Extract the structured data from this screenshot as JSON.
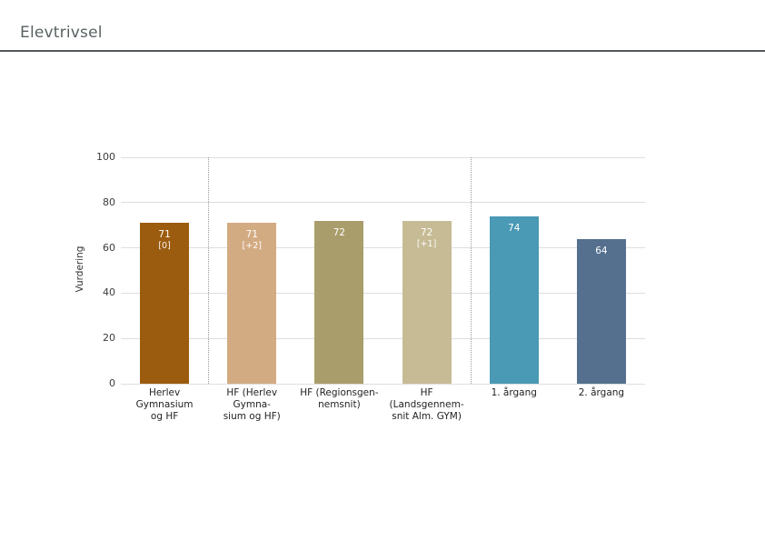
{
  "page": {
    "title": "Elevtrivsel"
  },
  "chart_data": {
    "type": "bar",
    "title": "Elevtrivsel",
    "xlabel": "",
    "ylabel": "Vurdering",
    "ylim": [
      0,
      100
    ],
    "yticks": [
      0,
      20,
      40,
      60,
      80,
      100
    ],
    "grid": true,
    "legend": "none",
    "categories": [
      "Herlev Gymnasium og HF",
      "HF (Herlev Gymnasium og HF)",
      "HF (Regionsgennemsnit)",
      "HF (Landsgennemsnit Alm. GYM)",
      "1. årgang",
      "2. årgang"
    ],
    "category_label_lines": [
      [
        "Herlev Gymnasium",
        "og HF"
      ],
      [
        "HF (Herlev Gymna-",
        "sium og HF)"
      ],
      [
        "HF (Regionsgen-",
        "nemsnit)"
      ],
      [
        "HF (Landsgennem-",
        "snit Alm. GYM)"
      ],
      [
        "1. årgang"
      ],
      [
        "2. årgang"
      ]
    ],
    "values": [
      71,
      71,
      72,
      72,
      74,
      64
    ],
    "delta_labels": [
      "[0]",
      "[+2]",
      "",
      "[+1]",
      "",
      ""
    ],
    "bar_colors": [
      "#9b5c0f",
      "#d3ab83",
      "#a99d6b",
      "#c6bb95",
      "#4a99b5",
      "#54708e"
    ],
    "separators_after_index": [
      0,
      3
    ],
    "layout_hints": {
      "gridline_color": "#dedede",
      "separator_style": "dotted",
      "value_label_position": "inside-top",
      "value_label_color": "#ffffff"
    }
  }
}
